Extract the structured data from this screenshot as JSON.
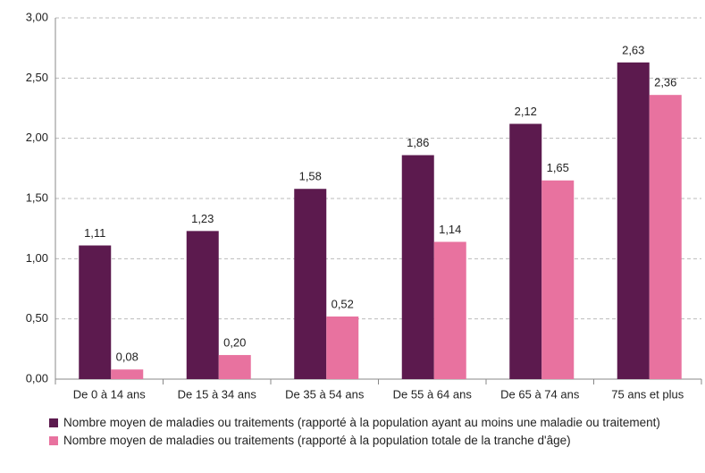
{
  "chart_data": {
    "type": "bar",
    "categories": [
      "De 0 à 14 ans",
      "De 15 à 34 ans",
      "De 35 à 54 ans",
      "De 55 à 64 ans",
      "De 65 à 74 ans",
      "75 ans et plus"
    ],
    "series": [
      {
        "name": "Nombre moyen de maladies ou traitements (rapporté à la population ayant au moins une maladie ou traitement)",
        "color": "#5c1a4e",
        "values": [
          1.11,
          1.23,
          1.58,
          1.86,
          2.12,
          2.63
        ],
        "value_labels": [
          "1,11",
          "1,23",
          "1,58",
          "1,86",
          "2,12",
          "2,63"
        ]
      },
      {
        "name": "Nombre moyen de maladies ou traitements (rapporté à la population totale de la tranche d'âge)",
        "color": "#e8729f",
        "values": [
          0.08,
          0.2,
          0.52,
          1.14,
          1.65,
          2.36
        ],
        "value_labels": [
          "0,08",
          "0,20",
          "0,52",
          "1,14",
          "1,65",
          "2,36"
        ]
      }
    ],
    "ylim": [
      0,
      3
    ],
    "yticks": [
      {
        "value": 0,
        "label": "0,00"
      },
      {
        "value": 0.5,
        "label": "0,50"
      },
      {
        "value": 1,
        "label": "1,00"
      },
      {
        "value": 1.5,
        "label": "1,50"
      },
      {
        "value": 2,
        "label": "2,00"
      },
      {
        "value": 2.5,
        "label": "2,50"
      },
      {
        "value": 3,
        "label": "3,00"
      }
    ],
    "grid": true,
    "legend": "bottom"
  }
}
